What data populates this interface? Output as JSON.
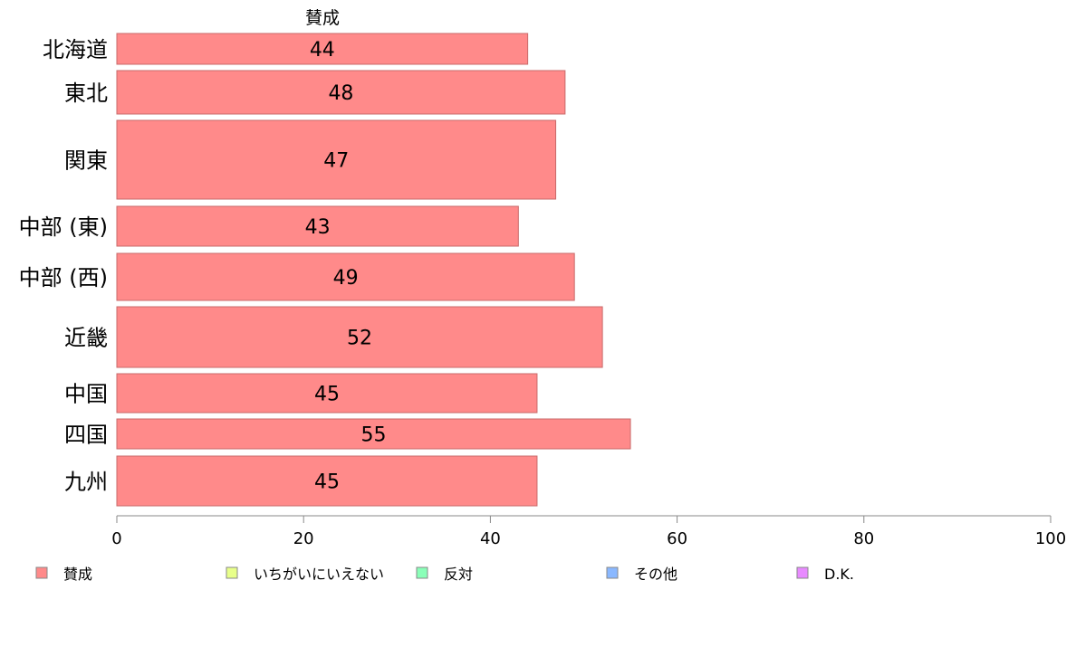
{
  "chart_data": {
    "type": "bar",
    "orientation": "horizontal",
    "column_title": "賛成",
    "categories": [
      "北海道",
      "東北",
      "関東",
      "中部 (東)",
      "中部 (西)",
      "近畿",
      "中国",
      "四国",
      "九州"
    ],
    "series": [
      {
        "name": "賛成",
        "values": [
          44,
          48,
          47,
          43,
          49,
          52,
          45,
          55,
          45
        ],
        "color": "#ff8a8a"
      }
    ],
    "xlim": [
      0,
      100
    ],
    "xticks": [
      0,
      20,
      40,
      60,
      80,
      100
    ],
    "legend": {
      "placement": "bottom",
      "entries": [
        {
          "label": "賛成",
          "color": "#ff8a8a"
        },
        {
          "label": "いちがいにいえない",
          "color": "#e8ff8a"
        },
        {
          "label": "反対",
          "color": "#8affb8"
        },
        {
          "label": "その他",
          "color": "#8ab8ff"
        },
        {
          "label": "D.K.",
          "color": "#e88aff"
        }
      ]
    },
    "grid": false
  }
}
